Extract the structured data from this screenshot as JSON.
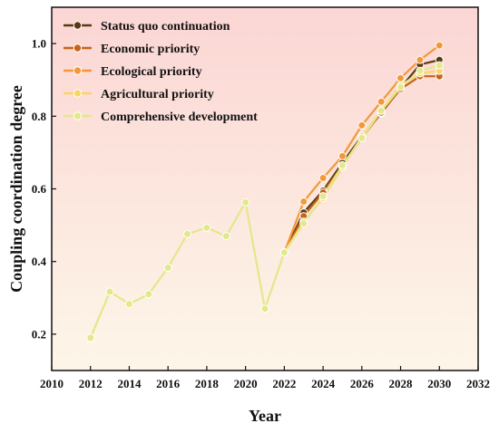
{
  "chart_data": {
    "type": "line",
    "xlabel": "Year",
    "ylabel": "Coupling coordination degree",
    "xlim": [
      2010,
      2032
    ],
    "ylim": [
      0.1,
      1.1
    ],
    "xticks": [
      2010,
      2012,
      2014,
      2016,
      2018,
      2020,
      2022,
      2024,
      2026,
      2028,
      2030,
      2032
    ],
    "yticks": [
      0.2,
      0.4,
      0.6,
      0.8,
      1.0
    ],
    "ytick_labels": [
      "0.2",
      "0.4",
      "0.6",
      "0.8",
      "1.0"
    ],
    "background_gradient": [
      "#fbd6d4",
      "#fdf6e8"
    ],
    "legend_position": "top-left",
    "grid": false,
    "historical": {
      "x": [
        2012,
        2013,
        2014,
        2015,
        2016,
        2017,
        2018,
        2019,
        2020,
        2021,
        2022
      ],
      "values": [
        0.19,
        0.317,
        0.283,
        0.31,
        0.383,
        0.476,
        0.493,
        0.47,
        0.563,
        0.27,
        0.425
      ],
      "color": "#e3e88a"
    },
    "series": [
      {
        "name": "Status quo continuation",
        "color": "#5a3a12",
        "x": [
          2022,
          2023,
          2024,
          2025,
          2026,
          2027,
          2028,
          2029,
          2030
        ],
        "values": [
          0.425,
          0.535,
          0.595,
          0.672,
          0.745,
          0.808,
          0.878,
          0.942,
          0.955
        ]
      },
      {
        "name": "Economic priority",
        "color": "#c8641a",
        "x": [
          2022,
          2023,
          2024,
          2025,
          2026,
          2027,
          2028,
          2029,
          2030
        ],
        "values": [
          0.425,
          0.525,
          0.59,
          0.665,
          0.74,
          0.81,
          0.875,
          0.91,
          0.91
        ]
      },
      {
        "name": "Ecological priority",
        "color": "#f3983a",
        "x": [
          2022,
          2023,
          2024,
          2025,
          2026,
          2027,
          2028,
          2029,
          2030
        ],
        "values": [
          0.425,
          0.565,
          0.63,
          0.69,
          0.775,
          0.84,
          0.905,
          0.955,
          0.995
        ]
      },
      {
        "name": "Agricultural priority",
        "color": "#f8d567",
        "x": [
          2022,
          2023,
          2024,
          2025,
          2026,
          2027,
          2028,
          2029,
          2030
        ],
        "values": [
          0.425,
          0.51,
          0.575,
          0.66,
          0.745,
          0.815,
          0.885,
          0.918,
          0.925
        ]
      },
      {
        "name": "Comprehensive development",
        "color": "#e3e88a",
        "x": [
          2022,
          2023,
          2024,
          2025,
          2026,
          2027,
          2028,
          2029,
          2030
        ],
        "values": [
          0.425,
          0.505,
          0.58,
          0.665,
          0.74,
          0.815,
          0.88,
          0.925,
          0.94
        ]
      }
    ]
  }
}
